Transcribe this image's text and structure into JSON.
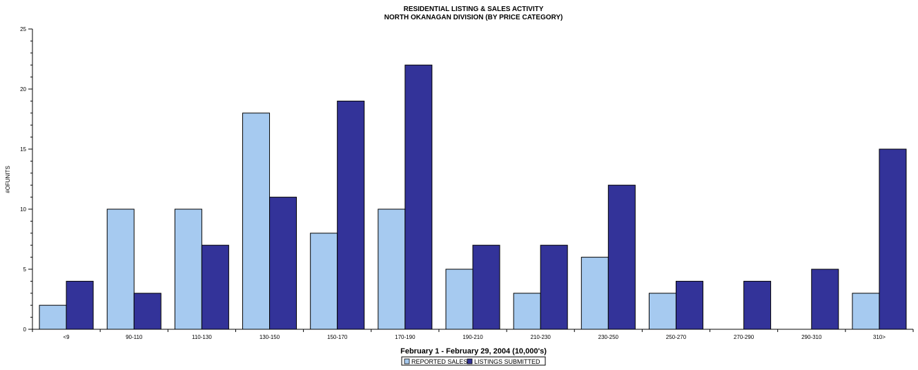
{
  "chart_data": {
    "type": "bar",
    "title": "RESIDENTIAL LISTING & SALES ACTIVITY",
    "subtitle": "NORTH OKANAGAN DIVISION (BY PRICE CATEGORY)",
    "xlabel": "February 1 - February 29, 2004 (10,000's)",
    "ylabel": "#OFUNITS",
    "ylim": [
      0,
      25
    ],
    "yticks": [
      "0",
      "5",
      "10",
      "15",
      "20",
      "25"
    ],
    "grid": false,
    "legend_position": "bottom",
    "categories": [
      "<9",
      "90-110",
      "110-130",
      "130-150",
      "150-170",
      "170-190",
      "190-210",
      "210-230",
      "230-250",
      "250-270",
      "270-290",
      "290-310",
      "310>"
    ],
    "series": [
      {
        "name": "REPORTED SALES",
        "color": "#a6caf0",
        "values": [
          2,
          10,
          10,
          18,
          8,
          10,
          5,
          3,
          6,
          3,
          0,
          0,
          3
        ]
      },
      {
        "name": "LISTINGS SUBMITTED",
        "color": "#333399",
        "values": [
          4,
          3,
          7,
          11,
          19,
          22,
          7,
          7,
          12,
          4,
          4,
          5,
          15
        ]
      }
    ]
  }
}
